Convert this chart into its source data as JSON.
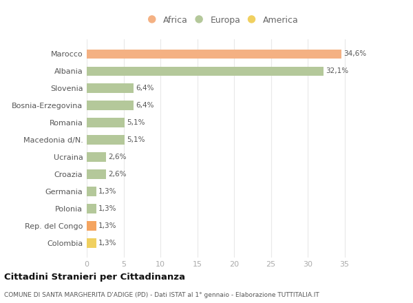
{
  "categories": [
    "Marocco",
    "Albania",
    "Slovenia",
    "Bosnia-Erzegovina",
    "Romania",
    "Macedonia d/N.",
    "Ucraina",
    "Croazia",
    "Germania",
    "Polonia",
    "Rep. del Congo",
    "Colombia"
  ],
  "values": [
    34.6,
    32.1,
    6.4,
    6.4,
    5.1,
    5.1,
    2.6,
    2.6,
    1.3,
    1.3,
    1.3,
    1.3
  ],
  "labels": [
    "34,6%",
    "32,1%",
    "6,4%",
    "6,4%",
    "5,1%",
    "5,1%",
    "2,6%",
    "2,6%",
    "1,3%",
    "1,3%",
    "1,3%",
    "1,3%"
  ],
  "colors": [
    "#F4B183",
    "#B4C89A",
    "#B4C89A",
    "#B4C89A",
    "#B4C89A",
    "#B4C89A",
    "#B4C89A",
    "#B4C89A",
    "#B4C89A",
    "#B4C89A",
    "#F4A460",
    "#F0D060"
  ],
  "legend_colors": {
    "Africa": "#F4B183",
    "Europa": "#B4C89A",
    "America": "#F0D060"
  },
  "title": "Cittadini Stranieri per Cittadinanza",
  "subtitle": "COMUNE DI SANTA MARGHERITA D'ADIGE (PD) - Dati ISTAT al 1° gennaio - Elaborazione TUTTITALIA.IT",
  "xlim": [
    0,
    37
  ],
  "xticks": [
    0,
    5,
    10,
    15,
    20,
    25,
    30,
    35
  ],
  "background_color": "#ffffff",
  "grid_color": "#e8e8e8",
  "bar_height": 0.55
}
